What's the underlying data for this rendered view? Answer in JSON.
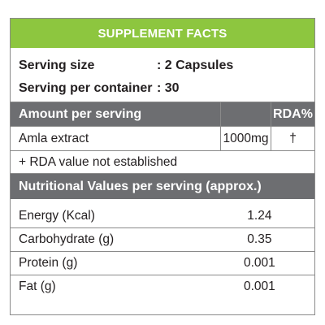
{
  "header": {
    "title": "SUPPLEMENT FACTS"
  },
  "serving": [
    {
      "label": "Serving size",
      "value": ": 2 Capsules"
    },
    {
      "label": "Serving per container",
      "value": ": 30"
    }
  ],
  "amount_table": {
    "header": {
      "col1": "Amount per serving",
      "col2": "",
      "col3": "RDA%"
    },
    "rows": [
      {
        "name": "Amla extract",
        "amount": "1000mg",
        "rda": "†"
      }
    ],
    "footnote": "+ RDA value not established"
  },
  "nutrition": {
    "header": "Nutritional Values per serving (approx.)",
    "rows": [
      {
        "name": "Energy (Kcal)",
        "value": "1.24"
      },
      {
        "name": "Carbohydrate (g)",
        "value": "0.35"
      },
      {
        "name": "Protein (g)",
        "value": "0.001"
      },
      {
        "name": "Fat (g)",
        "value": "0.001"
      }
    ]
  },
  "colors": {
    "accent": "#8dc63f",
    "header_dark": "#6d6e71",
    "border": "#8a8a8a"
  }
}
